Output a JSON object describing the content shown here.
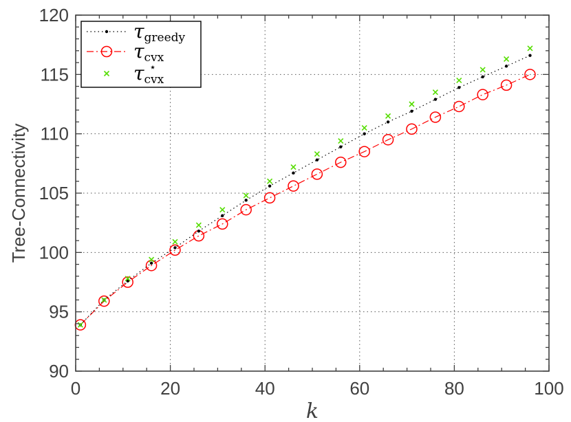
{
  "chart_data": {
    "type": "line",
    "xlabel": "k",
    "ylabel": "Tree-Connectivity",
    "xlim": [
      0,
      100
    ],
    "ylim": [
      90,
      120
    ],
    "x_ticks": [
      "0",
      "20",
      "40",
      "60",
      "80",
      "100"
    ],
    "y_ticks": [
      "90",
      "95",
      "100",
      "105",
      "110",
      "115",
      "120"
    ],
    "grid": true,
    "legend_position": "top-left",
    "x": [
      1,
      6,
      11,
      16,
      21,
      26,
      31,
      36,
      41,
      46,
      51,
      56,
      61,
      66,
      71,
      76,
      81,
      86,
      91,
      96
    ],
    "series": [
      {
        "name_base": "τ",
        "name_sub": "greedy",
        "name_sup": "",
        "style": "dotted-line-dots",
        "color": "#000000",
        "values": [
          93.9,
          96.0,
          97.6,
          99.1,
          100.4,
          101.8,
          103.1,
          104.4,
          105.6,
          106.7,
          107.8,
          108.9,
          110.0,
          111.0,
          111.9,
          112.9,
          113.9,
          114.8,
          115.7,
          116.6
        ]
      },
      {
        "name_base": "τ",
        "name_sub": "cvx",
        "name_sup": "",
        "style": "dashdot-line-circles",
        "color": "#ff0000",
        "values": [
          93.9,
          95.9,
          97.5,
          98.9,
          100.2,
          101.4,
          102.4,
          103.6,
          104.6,
          105.6,
          106.6,
          107.6,
          108.5,
          109.5,
          110.4,
          111.4,
          112.3,
          113.3,
          114.1,
          115.0
        ]
      },
      {
        "name_base": "τ",
        "name_sub": "cvx",
        "name_sup": "⋆",
        "style": "x-markers",
        "color": "#55dd00",
        "values": [
          93.9,
          96.0,
          97.8,
          99.4,
          100.9,
          102.3,
          103.6,
          104.8,
          106.0,
          107.2,
          108.3,
          109.4,
          110.5,
          111.5,
          112.5,
          113.5,
          114.5,
          115.4,
          116.3,
          117.2
        ]
      }
    ]
  }
}
